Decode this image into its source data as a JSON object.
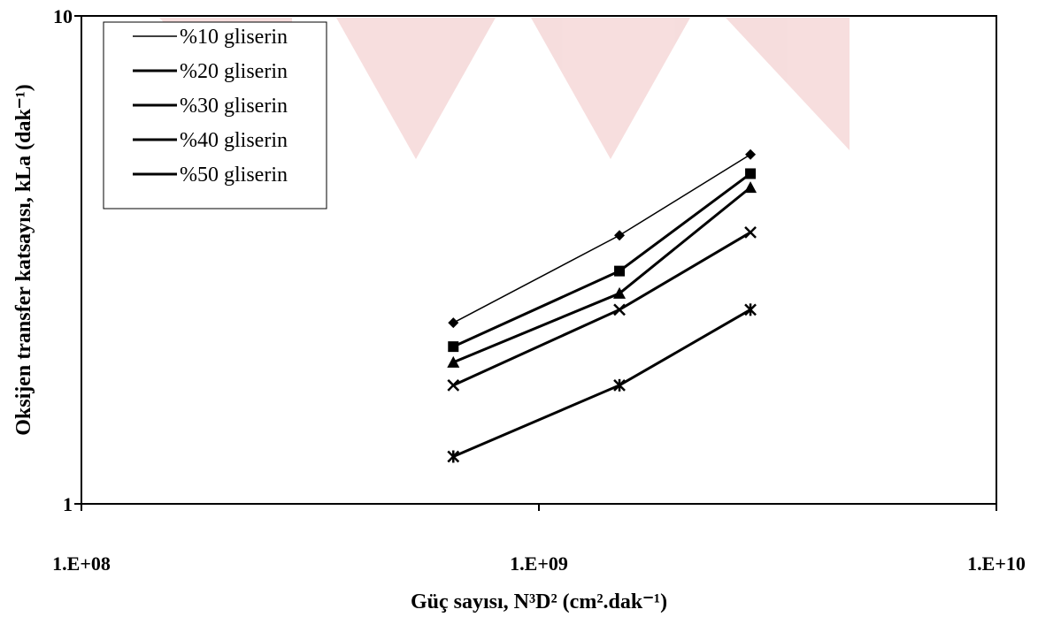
{
  "chart_data": {
    "type": "line",
    "x_scale": "log",
    "y_scale": "log",
    "x": [
      650000000,
      1500000000,
      2900000000
    ],
    "series": [
      {
        "name": "%10 gliserin",
        "marker": "diamond",
        "values": [
          2.35,
          3.55,
          5.2
        ]
      },
      {
        "name": "%20 gliserin",
        "marker": "square",
        "values": [
          2.1,
          3.0,
          4.75
        ]
      },
      {
        "name": "%30 gliserin",
        "marker": "triangle",
        "values": [
          1.95,
          2.7,
          4.45
        ]
      },
      {
        "name": "%40 gliserin",
        "marker": "x",
        "values": [
          1.75,
          2.5,
          3.6
        ]
      },
      {
        "name": "%50 gliserin",
        "marker": "asterisk",
        "values": [
          1.25,
          1.75,
          2.5
        ]
      }
    ],
    "xlim": [
      100000000,
      10000000000
    ],
    "ylim": [
      1,
      10
    ],
    "x_tick_labels": [
      "1.E+08",
      "1.E+09",
      "1.E+10"
    ],
    "y_tick_labels": [
      "1",
      "10"
    ],
    "xlabel": "Güç sayısı, N³D² (cm².dak⁻¹)",
    "ylabel": "Oksijen transfer katsayısı, kLa (dak⁻¹)",
    "legend_position": "top-left",
    "grid": false,
    "line_color": "#000000",
    "watermark_color": "#f3c8c8"
  }
}
